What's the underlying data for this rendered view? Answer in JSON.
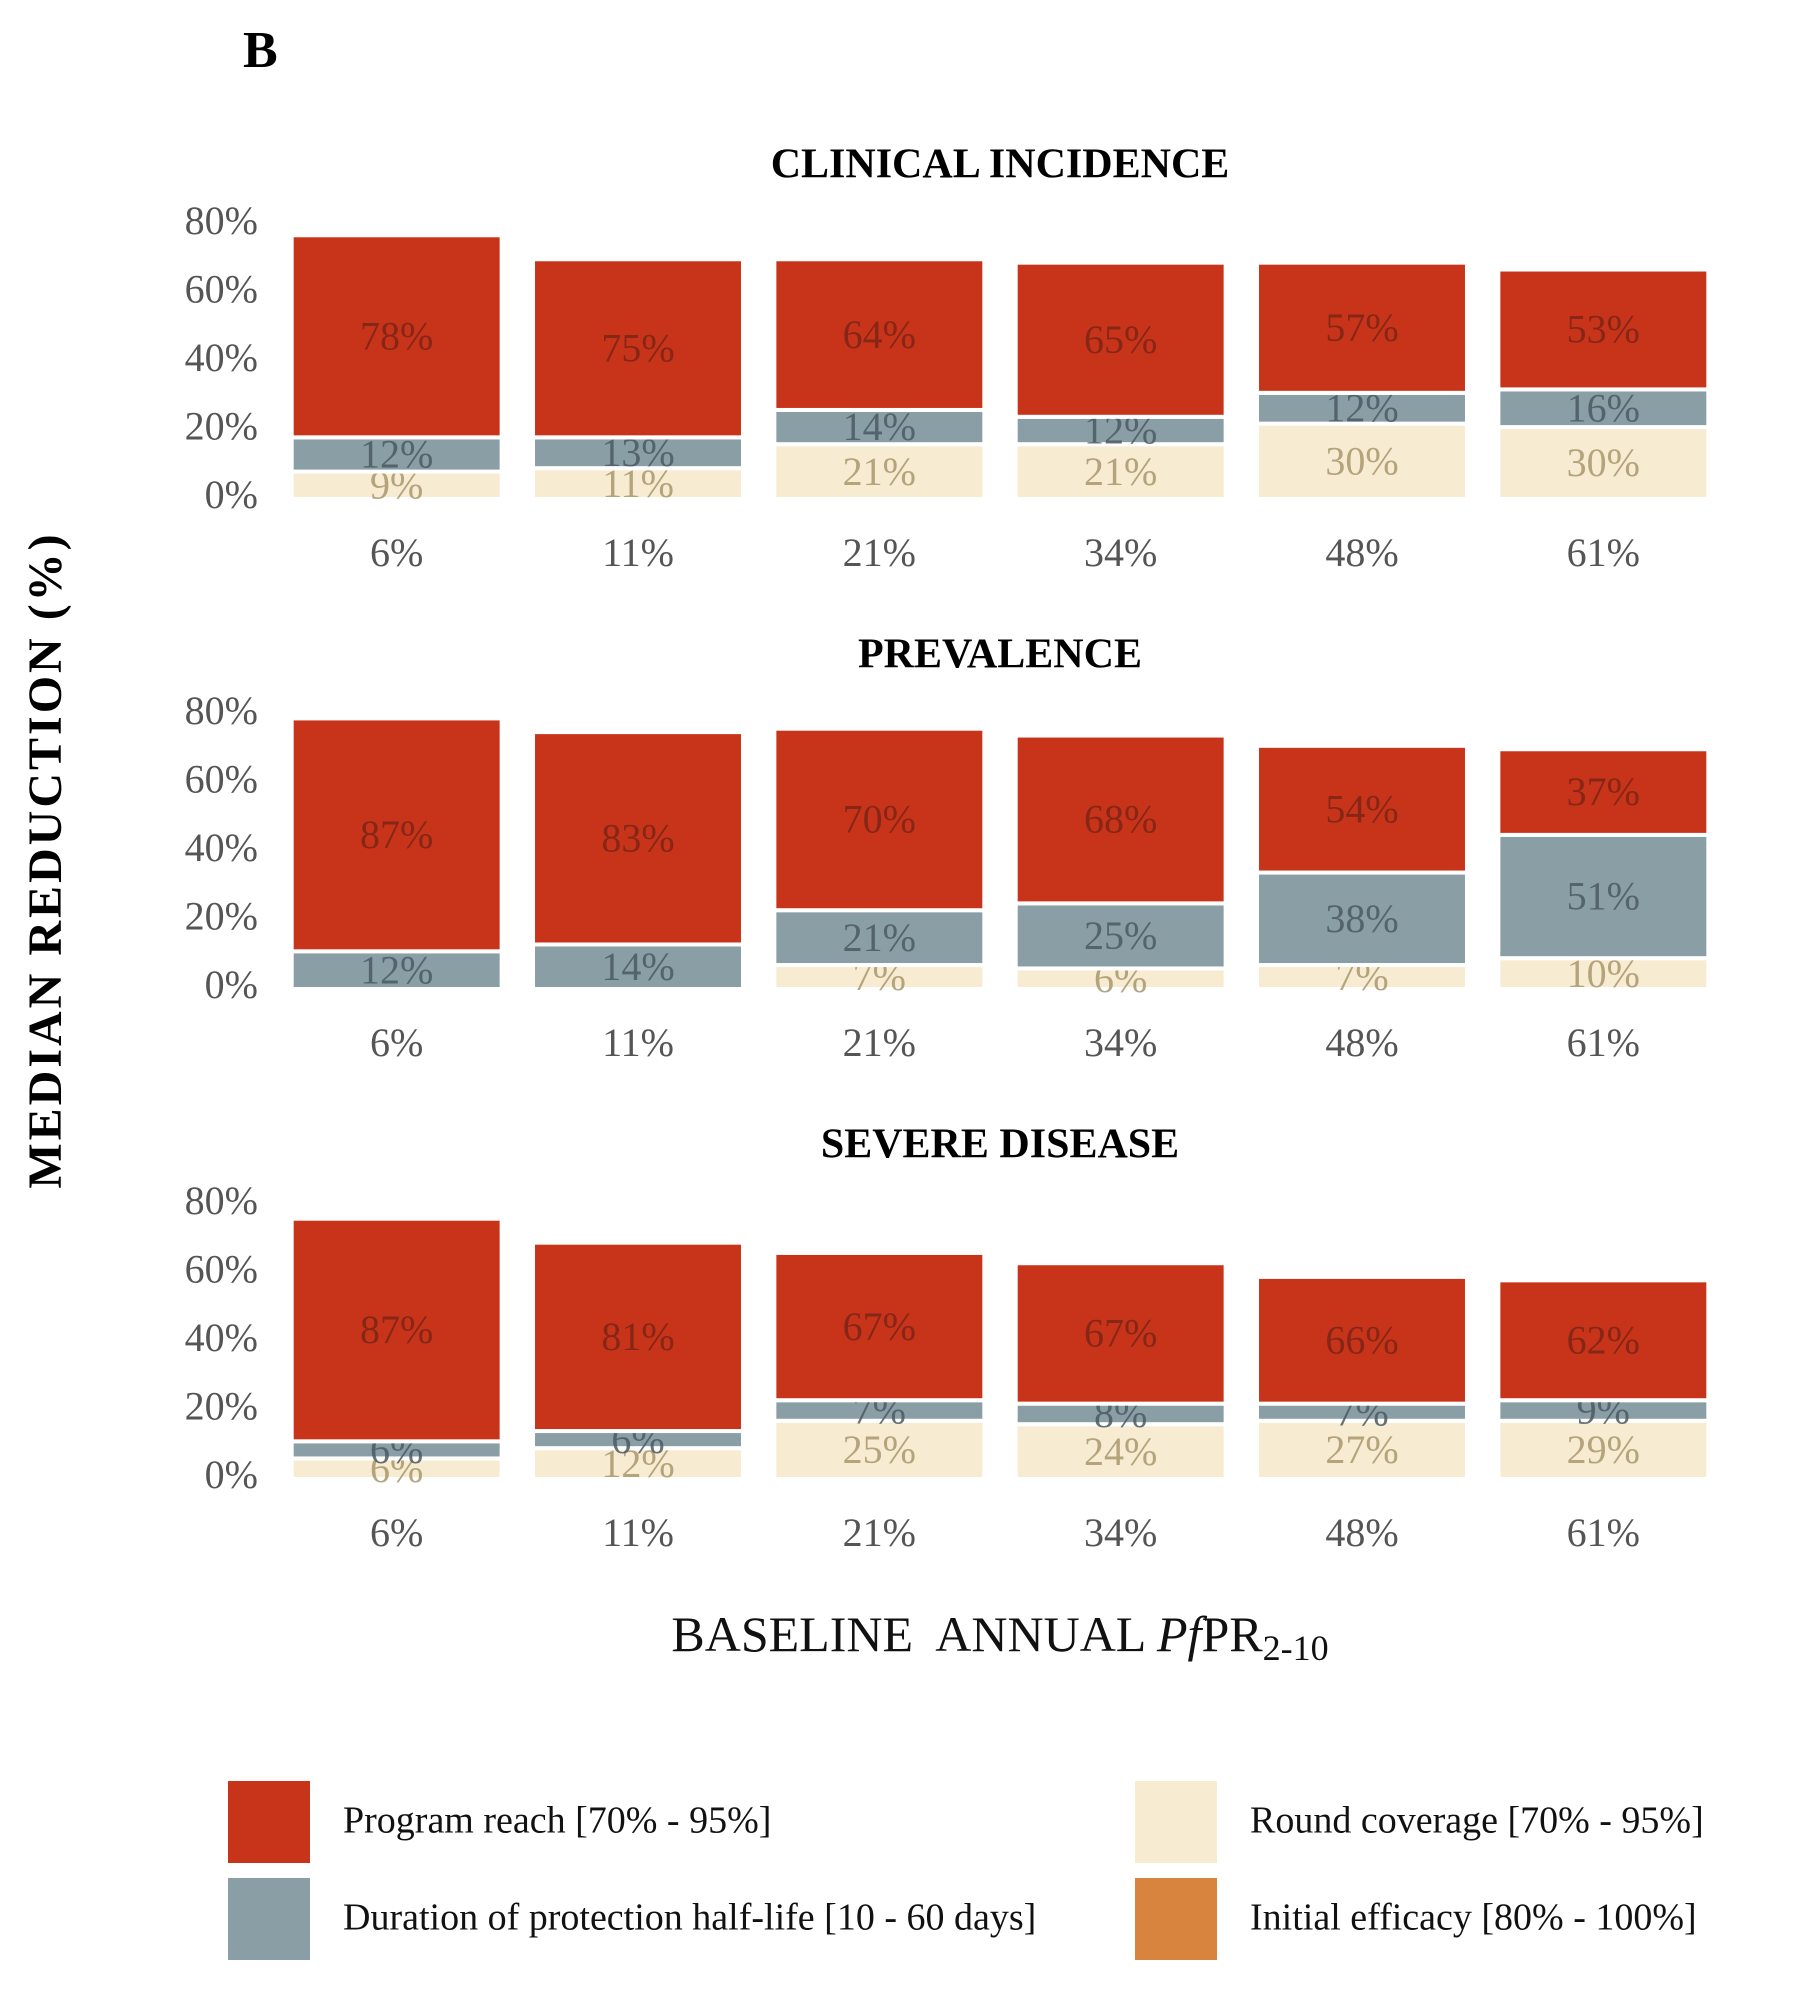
{
  "panel_label": "B",
  "y_label": "MEDIAN REDUCTION (%)",
  "x_label": {
    "prefix": "BASELINE  ANNUAL ",
    "italic": "Pf",
    "main": "PR",
    "subscript": "2-10"
  },
  "chart_data": [
    {
      "type": "bar",
      "stacked": true,
      "title": "CLINICAL INCIDENCE",
      "categories": [
        "6%",
        "11%",
        "21%",
        "34%",
        "48%",
        "61%"
      ],
      "series": [
        {
          "name": "Program reach [70% - 95%]",
          "color": "#c8341a",
          "values": [
            59,
            52,
            44,
            45,
            38,
            35
          ],
          "segment_labels": [
            "78%",
            "75%",
            "64%",
            "65%",
            "57%",
            "53%"
          ]
        },
        {
          "name": "Duration of protection half-life [10 - 60 days]",
          "color": "#8a9ea5",
          "values": [
            10,
            9,
            10,
            8,
            9,
            11
          ],
          "segment_labels": [
            "12%",
            "13%",
            "14%",
            "12%",
            "12%",
            "16%"
          ]
        },
        {
          "name": "Round coverage [70% - 95%]",
          "color": "#f7ecd2",
          "values": [
            8,
            9,
            16,
            16,
            22,
            21
          ],
          "segment_labels": [
            "9%",
            "11%",
            "21%",
            "21%",
            "30%",
            "30%"
          ]
        },
        {
          "name": "Initial efficacy [80% - 100%]",
          "color": "#d9843e",
          "values": [
            0,
            0,
            0,
            0,
            0,
            0
          ]
        }
      ],
      "ylim": [
        0,
        80
      ],
      "yticks": [
        {
          "value": 0,
          "label": "0%"
        },
        {
          "value": 20,
          "label": "20%"
        },
        {
          "value": 40,
          "label": "40%"
        },
        {
          "value": 60,
          "label": "60%"
        },
        {
          "value": 80,
          "label": "80%"
        }
      ]
    },
    {
      "type": "bar",
      "stacked": true,
      "title": "PREVALENCE",
      "categories": [
        "6%",
        "11%",
        "21%",
        "34%",
        "48%",
        "61%"
      ],
      "series": [
        {
          "name": "Program reach [70% - 95%]",
          "color": "#c8341a",
          "values": [
            68,
            62,
            53,
            49,
            37,
            25
          ],
          "segment_labels": [
            "87%",
            "83%",
            "70%",
            "68%",
            "54%",
            "37%"
          ]
        },
        {
          "name": "Duration of protection half-life [10 - 60 days]",
          "color": "#8a9ea5",
          "values": [
            11,
            13,
            16,
            19,
            27,
            36
          ],
          "segment_labels": [
            "12%",
            "14%",
            "21%",
            "25%",
            "38%",
            "51%"
          ]
        },
        {
          "name": "Round coverage [70% - 95%]",
          "color": "#f7ecd2",
          "values": [
            0,
            0,
            7,
            6,
            7,
            9
          ],
          "segment_labels": [
            null,
            null,
            "7%",
            "6%",
            "7%",
            "10%"
          ]
        },
        {
          "name": "Initial efficacy [80% - 100%]",
          "color": "#d9843e",
          "values": [
            0,
            0,
            0,
            0,
            0,
            0
          ]
        }
      ],
      "ylim": [
        0,
        80
      ],
      "yticks": [
        {
          "value": 0,
          "label": "0%"
        },
        {
          "value": 20,
          "label": "20%"
        },
        {
          "value": 40,
          "label": "40%"
        },
        {
          "value": 60,
          "label": "60%"
        },
        {
          "value": 80,
          "label": "80%"
        }
      ]
    },
    {
      "type": "bar",
      "stacked": true,
      "title": "SEVERE DISEASE",
      "categories": [
        "6%",
        "11%",
        "21%",
        "34%",
        "48%",
        "61%"
      ],
      "series": [
        {
          "name": "Program reach [70% - 95%]",
          "color": "#c8341a",
          "values": [
            65,
            55,
            43,
            41,
            37,
            35
          ],
          "segment_labels": [
            "87%",
            "81%",
            "67%",
            "67%",
            "66%",
            "62%"
          ]
        },
        {
          "name": "Duration of protection half-life [10 - 60 days]",
          "color": "#8a9ea5",
          "values": [
            5,
            5,
            6,
            6,
            5,
            6
          ],
          "segment_labels": [
            "6%",
            "6%",
            "7%",
            "8%",
            "7%",
            "9%"
          ]
        },
        {
          "name": "Round coverage [70% - 95%]",
          "color": "#f7ecd2",
          "values": [
            6,
            9,
            17,
            16,
            17,
            17
          ],
          "segment_labels": [
            "6%",
            "12%",
            "25%",
            "24%",
            "27%",
            "29%"
          ]
        },
        {
          "name": "Initial efficacy [80% - 100%]",
          "color": "#d9843e",
          "values": [
            0,
            0,
            0,
            0,
            0,
            0
          ]
        }
      ],
      "ylim": [
        0,
        80
      ],
      "yticks": [
        {
          "value": 0,
          "label": "0%"
        },
        {
          "value": 20,
          "label": "20%"
        },
        {
          "value": 40,
          "label": "40%"
        },
        {
          "value": 60,
          "label": "60%"
        },
        {
          "value": 80,
          "label": "80%"
        }
      ]
    }
  ]
}
